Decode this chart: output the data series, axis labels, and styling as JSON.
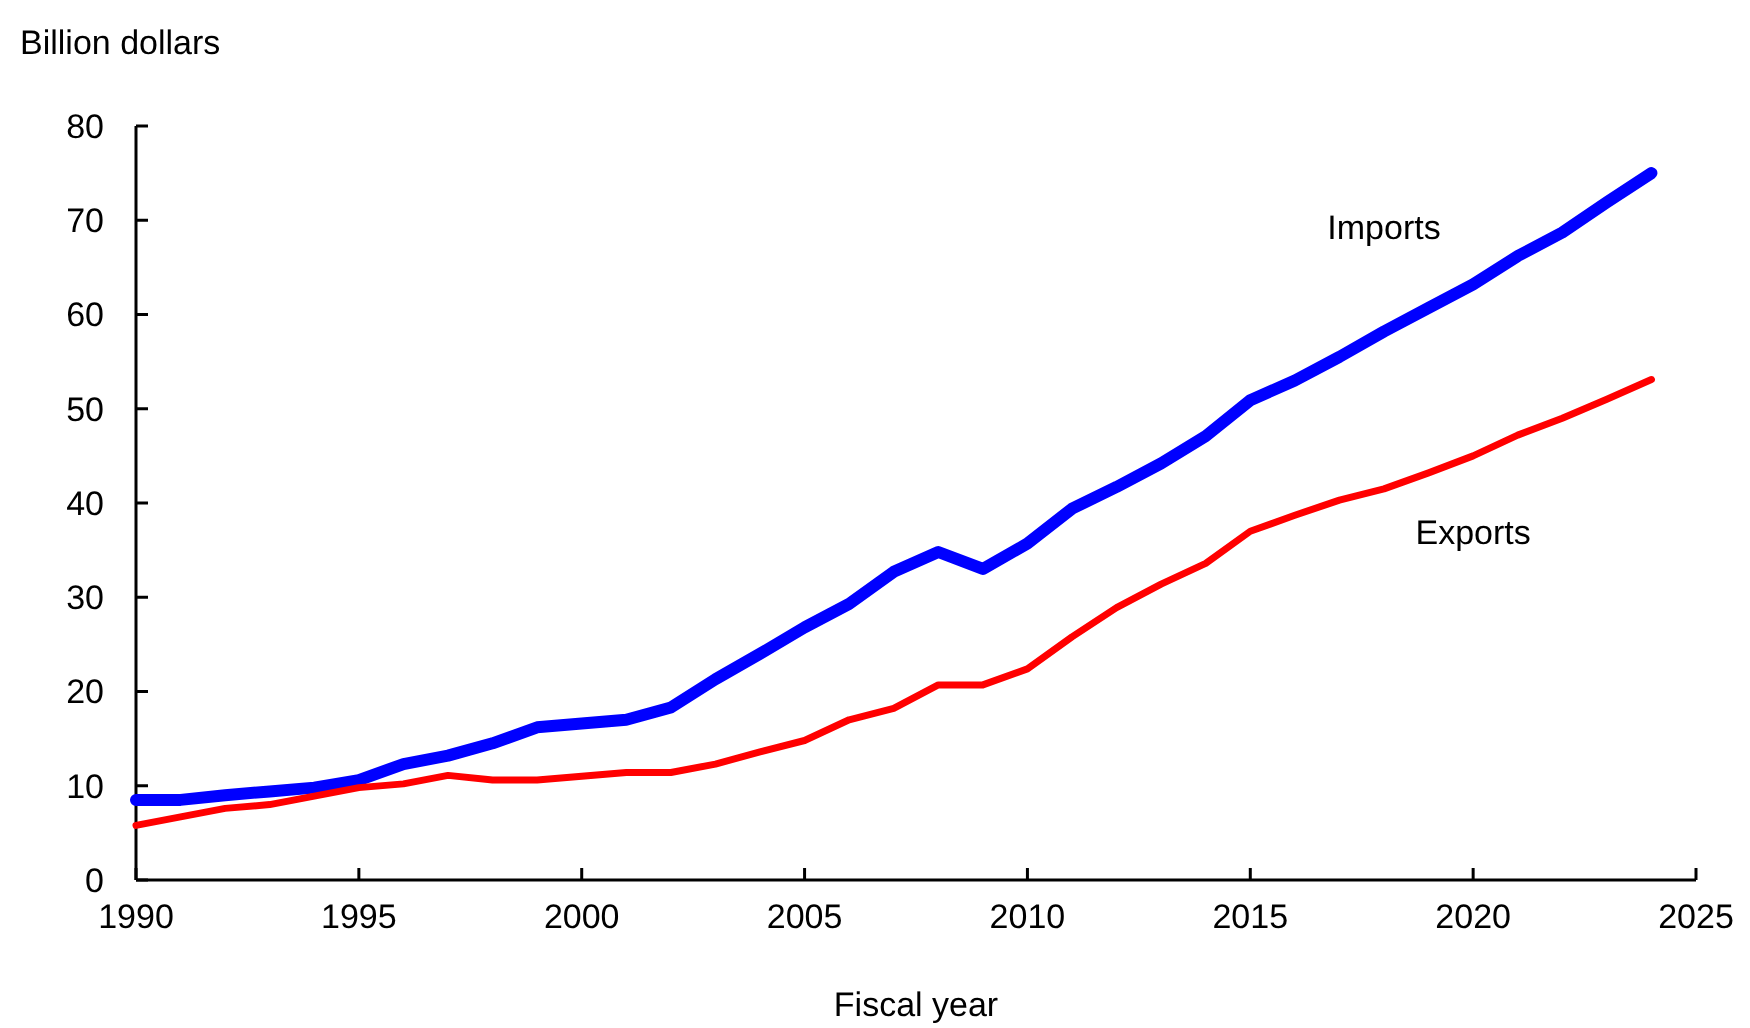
{
  "chart_data": {
    "type": "line",
    "xlabel": "Fiscal year",
    "ylabel": "Billion dollars",
    "x": [
      1990,
      1991,
      1992,
      1993,
      1994,
      1995,
      1996,
      1997,
      1998,
      1999,
      2000,
      2001,
      2002,
      2003,
      2004,
      2005,
      2006,
      2007,
      2008,
      2009,
      2010,
      2011,
      2012,
      2013,
      2014,
      2015,
      2016,
      2017,
      2018,
      2019,
      2020,
      2021,
      2022,
      2023,
      2024
    ],
    "series": [
      {
        "name": "Imports",
        "color": "#0000ff",
        "values": [
          8.5,
          8.5,
          9,
          9.4,
          9.8,
          10.6,
          12.3,
          13.2,
          14.5,
          16.2,
          16.6,
          17,
          18.3,
          21.3,
          24,
          26.8,
          29.3,
          32.7,
          34.8,
          33,
          35.7,
          39.4,
          41.7,
          44.2,
          47.1,
          50.9,
          53,
          55.5,
          58.2,
          60.7,
          63.2,
          66.2,
          68.7,
          71.9,
          75
        ]
      },
      {
        "name": "Exports",
        "color": "#ff0000",
        "values": [
          5.8,
          6.7,
          7.6,
          8,
          8.9,
          9.8,
          10.2,
          11.1,
          10.6,
          10.6,
          11,
          11.4,
          11.4,
          12.3,
          13.6,
          14.8,
          17,
          18.2,
          20.7,
          20.7,
          22.4,
          25.8,
          28.9,
          31.4,
          33.6,
          37,
          38.7,
          40.3,
          41.5,
          43.2,
          45,
          47.2,
          49,
          51,
          53.1
        ]
      }
    ],
    "xlim": [
      1990,
      2025
    ],
    "xticks": [
      1990,
      1995,
      2000,
      2005,
      2010,
      2015,
      2020,
      2025
    ],
    "ylim": [
      0,
      80
    ],
    "yticks": [
      0,
      10,
      20,
      30,
      40,
      50,
      60,
      70,
      80
    ],
    "grid": false,
    "marker": "none",
    "line_style": "solid"
  }
}
